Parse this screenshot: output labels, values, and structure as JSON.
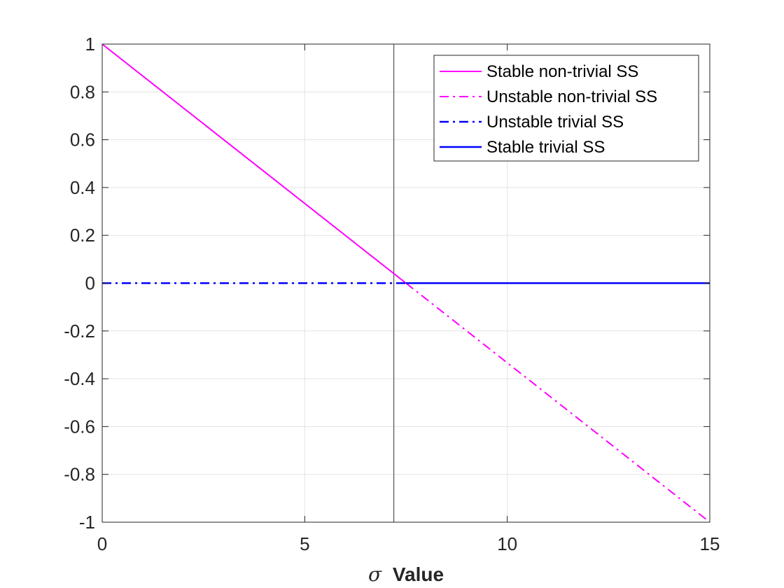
{
  "chart_data": {
    "type": "line",
    "xlabel_symbol": "σ",
    "xlabel_text": "Value",
    "xlim": [
      0,
      15
    ],
    "ylim": [
      -1,
      1
    ],
    "xticks": [
      0,
      5,
      10,
      15
    ],
    "xtick_labels": [
      "0",
      "5",
      "10",
      "15"
    ],
    "yticks": [
      -1,
      -0.8,
      -0.6,
      -0.4,
      -0.2,
      0,
      0.2,
      0.4,
      0.6,
      0.8,
      1
    ],
    "ytick_labels": [
      "-1",
      "-0.8",
      "-0.6",
      "-0.4",
      "-0.2",
      "0",
      "0.2",
      "0.4",
      "0.6",
      "0.8",
      "1"
    ],
    "grid": true,
    "legend_position": "top-right",
    "vertical_reference_line_x": 7.2,
    "series": [
      {
        "name": "Stable non-trivial SS",
        "color": "#ff00ff",
        "style": "solid",
        "x": [
          0,
          7.5
        ],
        "y": [
          1,
          0
        ]
      },
      {
        "name": "Unstable non-trivial SS",
        "color": "#ff00ff",
        "style": "dashdot",
        "x": [
          7.5,
          15
        ],
        "y": [
          0,
          -1
        ]
      },
      {
        "name": "Unstable trivial SS",
        "color": "#0000ff",
        "style": "dashdot",
        "x": [
          0,
          7.5
        ],
        "y": [
          0,
          0
        ]
      },
      {
        "name": "Stable trivial SS",
        "color": "#0000ff",
        "style": "solid",
        "x": [
          7.5,
          15
        ],
        "y": [
          0,
          0
        ]
      }
    ]
  }
}
